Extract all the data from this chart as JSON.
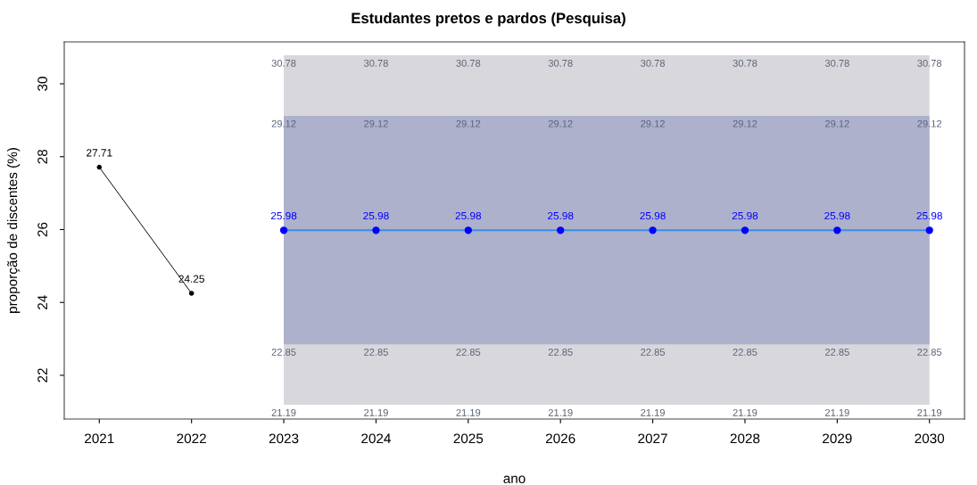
{
  "chart_data": {
    "type": "line",
    "title": "Estudantes pretos e pardos (Pesquisa)",
    "xlabel": "ano",
    "ylabel": "proporção de discentes (%)",
    "xlim": [
      2020.62,
      2030.38
    ],
    "ylim": [
      20.8,
      31.15
    ],
    "xticks": [
      2021,
      2022,
      2023,
      2024,
      2025,
      2026,
      2027,
      2028,
      2029,
      2030
    ],
    "yticks": [
      22,
      24,
      26,
      28,
      30
    ],
    "grid": false,
    "data_labels": true,
    "marker": "circle",
    "line_style": "solid",
    "series": [
      {
        "color": "#000000",
        "x": [
          2021,
          2022
        ],
        "values": [
          27.71,
          24.25
        ]
      },
      {
        "type": "area",
        "color": "#d8d7dc",
        "x": [
          2023,
          2024,
          2025,
          2026,
          2027,
          2028,
          2029,
          2030
        ],
        "values": [
          null,
          null,
          null,
          null,
          null,
          null,
          null,
          null
        ],
        "lower": [
          21.19,
          21.19,
          21.19,
          21.19,
          21.19,
          21.19,
          21.19,
          21.19
        ],
        "upper": [
          30.78,
          30.78,
          30.78,
          30.78,
          30.78,
          30.78,
          30.78,
          30.78
        ]
      },
      {
        "type": "area",
        "color": "#adb1cc",
        "x": [
          2023,
          2024,
          2025,
          2026,
          2027,
          2028,
          2029,
          2030
        ],
        "values": [
          null,
          null,
          null,
          null,
          null,
          null,
          null,
          null
        ],
        "lower": [
          22.85,
          22.85,
          22.85,
          22.85,
          22.85,
          22.85,
          22.85,
          22.85
        ],
        "upper": [
          29.12,
          29.12,
          29.12,
          29.12,
          29.12,
          29.12,
          29.12,
          29.12
        ]
      },
      {
        "color": "#0000ff",
        "x": [
          2023,
          2024,
          2025,
          2026,
          2027,
          2028,
          2029,
          2030
        ],
        "values": [
          25.98,
          25.98,
          25.98,
          25.98,
          25.98,
          25.98,
          25.98,
          25.98
        ]
      }
    ],
    "annotations": [
      {
        "text": "30.78",
        "x": 2023,
        "y": 30.78
      },
      {
        "text": "30.78",
        "x": 2024,
        "y": 30.78
      },
      {
        "text": "30.78",
        "x": 2025,
        "y": 30.78
      },
      {
        "text": "30.78",
        "x": 2026,
        "y": 30.78
      },
      {
        "text": "30.78",
        "x": 2027,
        "y": 30.78
      },
      {
        "text": "30.78",
        "x": 2028,
        "y": 30.78
      },
      {
        "text": "30.78",
        "x": 2029,
        "y": 30.78
      },
      {
        "text": "30.78",
        "x": 2030,
        "y": 30.78
      },
      {
        "text": "29.12",
        "x": 2023,
        "y": 29.12
      },
      {
        "text": "29.12",
        "x": 2024,
        "y": 29.12
      },
      {
        "text": "29.12",
        "x": 2025,
        "y": 29.12
      },
      {
        "text": "29.12",
        "x": 2026,
        "y": 29.12
      },
      {
        "text": "29.12",
        "x": 2027,
        "y": 29.12
      },
      {
        "text": "29.12",
        "x": 2028,
        "y": 29.12
      },
      {
        "text": "29.12",
        "x": 2029,
        "y": 29.12
      },
      {
        "text": "29.12",
        "x": 2030,
        "y": 29.12
      },
      {
        "text": "22.85",
        "x": 2023,
        "y": 22.85
      },
      {
        "text": "22.85",
        "x": 2024,
        "y": 22.85
      },
      {
        "text": "22.85",
        "x": 2025,
        "y": 22.85
      },
      {
        "text": "22.85",
        "x": 2026,
        "y": 22.85
      },
      {
        "text": "22.85",
        "x": 2027,
        "y": 22.85
      },
      {
        "text": "22.85",
        "x": 2028,
        "y": 22.85
      },
      {
        "text": "22.85",
        "x": 2029,
        "y": 22.85
      },
      {
        "text": "22.85",
        "x": 2030,
        "y": 22.85
      },
      {
        "text": "21.19",
        "x": 2023,
        "y": 21.19
      },
      {
        "text": "21.19",
        "x": 2024,
        "y": 21.19
      },
      {
        "text": "21.19",
        "x": 2025,
        "y": 21.19
      },
      {
        "text": "21.19",
        "x": 2026,
        "y": 21.19
      },
      {
        "text": "21.19",
        "x": 2027,
        "y": 21.19
      },
      {
        "text": "21.19",
        "x": 2028,
        "y": 21.19
      },
      {
        "text": "21.19",
        "x": 2029,
        "y": 21.19
      },
      {
        "text": "21.19",
        "x": 2030,
        "y": 21.19
      }
    ]
  }
}
